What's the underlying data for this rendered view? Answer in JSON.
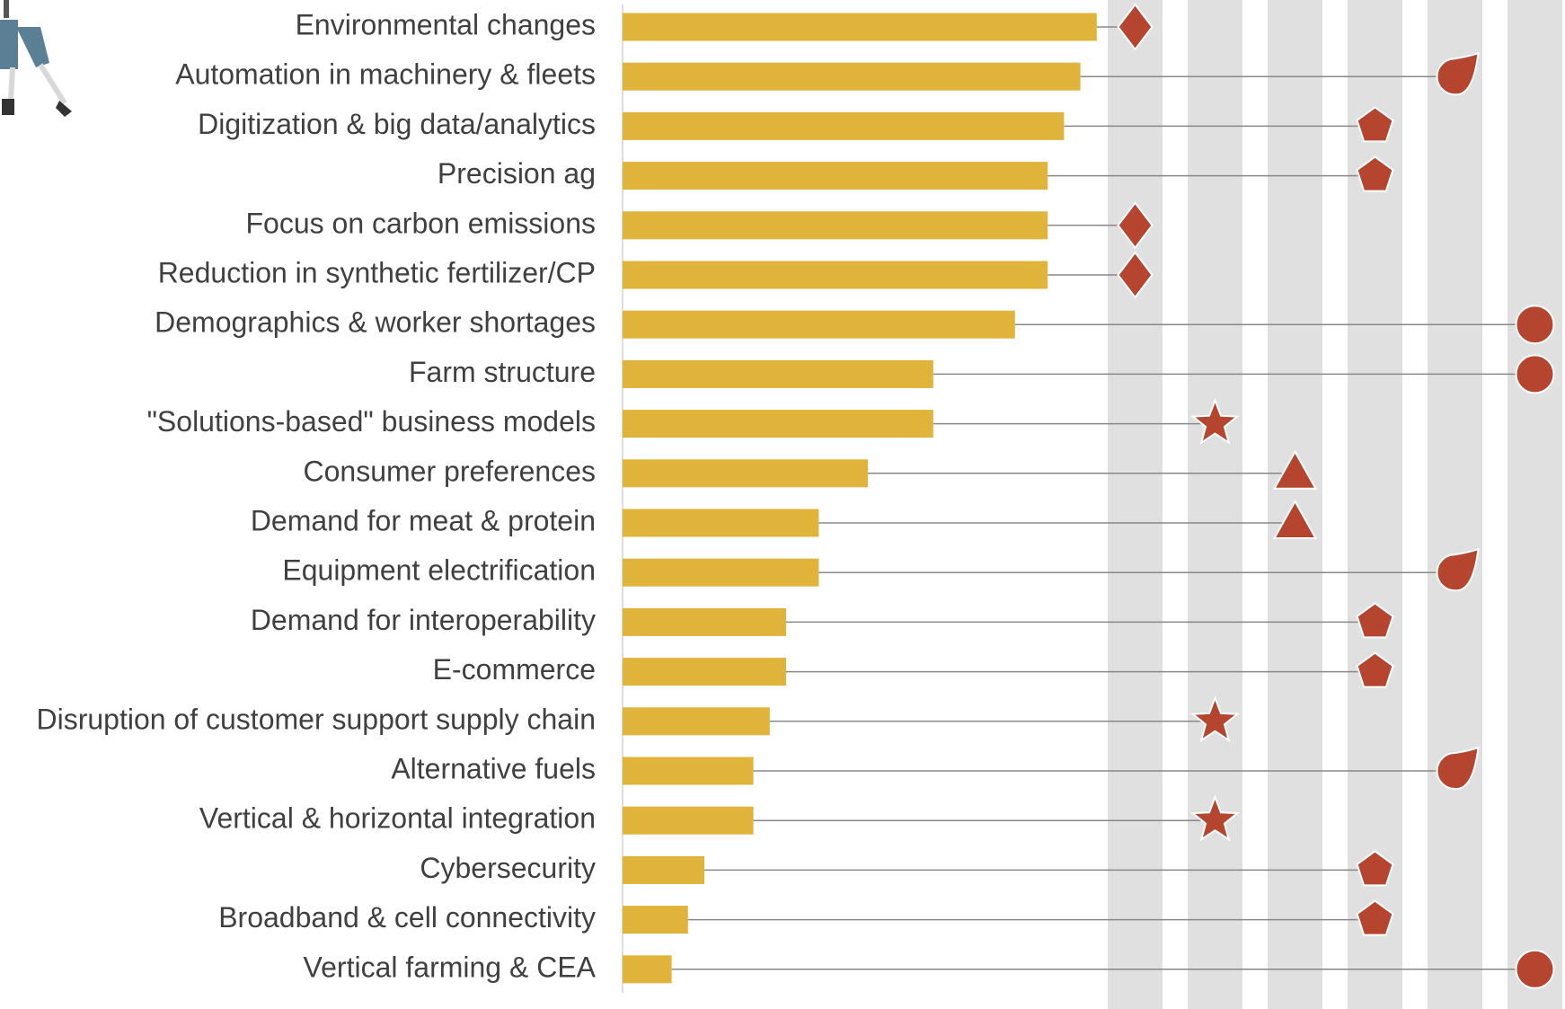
{
  "chart_data": {
    "type": "bar",
    "orientation": "horizontal",
    "categories": [
      "Environmental changes",
      "Automation in machinery & fleets",
      "Digitization & big data/analytics",
      "Precision ag",
      "Focus on carbon emissions",
      "Reduction in synthetic fertilizer/CP",
      "Demographics & worker shortages",
      "Farm structure",
      "\"Solutions-based\" business models",
      "Consumer preferences",
      "Demand for meat & protein",
      "Equipment electrification",
      "Demand for interoperability",
      "E-commerce",
      "Disruption of customer support supply chain",
      "Alternative fuels",
      "Vertical & horizontal integration",
      "Cybersecurity",
      "Broadband & cell connectivity",
      "Vertical farming & CEA"
    ],
    "values": [
      29,
      28,
      27,
      26,
      26,
      26,
      24,
      19,
      19,
      15,
      12,
      12,
      10,
      10,
      9,
      8,
      8,
      5,
      4,
      3
    ],
    "color": "#e0b43a",
    "xlim": [
      0,
      29
    ],
    "groups": [
      1,
      5,
      4,
      4,
      1,
      1,
      6,
      6,
      2,
      3,
      3,
      5,
      4,
      4,
      2,
      5,
      2,
      4,
      4,
      6
    ],
    "group_shapes": [
      "diamond",
      "star",
      "triangle",
      "pentagon",
      "drop",
      "circle"
    ],
    "marker_color": "#b5452f"
  }
}
